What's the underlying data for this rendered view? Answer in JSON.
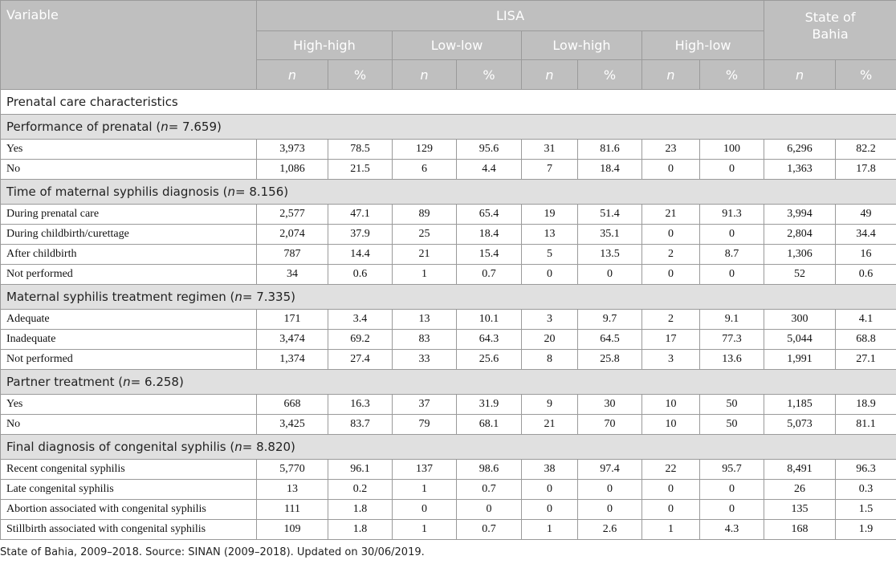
{
  "header": {
    "variable": "Variable",
    "lisa": "LISA",
    "groups": [
      "High-high",
      "Low-low",
      "Low-high",
      "High-low"
    ],
    "state_line1": "State of",
    "state_line2": "Bahia",
    "n": "n",
    "pct": "%"
  },
  "section_title": "Prenatal care characteristics",
  "groups": [
    {
      "title": "Performance of prenatal",
      "n_text": "= 7.659",
      "rows": [
        {
          "label": "Yes",
          "values": [
            "3,973",
            "78.5",
            "129",
            "95.6",
            "31",
            "81.6",
            "23",
            "100",
            "6,296",
            "82.2"
          ]
        },
        {
          "label": "No",
          "values": [
            "1,086",
            "21.5",
            "6",
            "4.4",
            "7",
            "18.4",
            "0",
            "0",
            "1,363",
            "17.8"
          ]
        }
      ]
    },
    {
      "title": "Time of maternal syphilis diagnosis",
      "n_text": "= 8.156",
      "rows": [
        {
          "label": "During prenatal care",
          "values": [
            "2,577",
            "47.1",
            "89",
            "65.4",
            "19",
            "51.4",
            "21",
            "91.3",
            "3,994",
            "49"
          ]
        },
        {
          "label": "During childbirth/curettage",
          "values": [
            "2,074",
            "37.9",
            "25",
            "18.4",
            "13",
            "35.1",
            "0",
            "0",
            "2,804",
            "34.4"
          ]
        },
        {
          "label": "After childbirth",
          "values": [
            "787",
            "14.4",
            "21",
            "15.4",
            "5",
            "13.5",
            "2",
            "8.7",
            "1,306",
            "16"
          ]
        },
        {
          "label": "Not performed",
          "values": [
            "34",
            "0.6",
            "1",
            "0.7",
            "0",
            "0",
            "0",
            "0",
            "52",
            "0.6"
          ]
        }
      ]
    },
    {
      "title": "Maternal syphilis treatment regimen",
      "n_text": "= 7.335",
      "rows": [
        {
          "label": "Adequate",
          "values": [
            "171",
            "3.4",
            "13",
            "10.1",
            "3",
            "9.7",
            "2",
            "9.1",
            "300",
            "4.1"
          ]
        },
        {
          "label": "Inadequate",
          "values": [
            "3,474",
            "69.2",
            "83",
            "64.3",
            "20",
            "64.5",
            "17",
            "77.3",
            "5,044",
            "68.8"
          ]
        },
        {
          "label": "Not performed",
          "values": [
            "1,374",
            "27.4",
            "33",
            "25.6",
            "8",
            "25.8",
            "3",
            "13.6",
            "1,991",
            "27.1"
          ]
        }
      ]
    },
    {
      "title": "Partner treatment",
      "n_text": "= 6.258",
      "rows": [
        {
          "label": "Yes",
          "values": [
            "668",
            "16.3",
            "37",
            "31.9",
            "9",
            "30",
            "10",
            "50",
            "1,185",
            "18.9"
          ]
        },
        {
          "label": "No",
          "values": [
            "3,425",
            "83.7",
            "79",
            "68.1",
            "21",
            "70",
            "10",
            "50",
            "5,073",
            "81.1"
          ]
        }
      ]
    },
    {
      "title": "Final diagnosis of congenital syphilis",
      "n_text": "= 8.820",
      "rows": [
        {
          "label": "Recent congenital syphilis",
          "values": [
            "5,770",
            "96.1",
            "137",
            "98.6",
            "38",
            "97.4",
            "22",
            "95.7",
            "8,491",
            "96.3"
          ]
        },
        {
          "label": "Late congenital syphilis",
          "values": [
            "13",
            "0.2",
            "1",
            "0.7",
            "0",
            "0",
            "0",
            "0",
            "26",
            "0.3"
          ]
        },
        {
          "label": "Abortion associated with congenital syphilis",
          "values": [
            "111",
            "1.8",
            "0",
            "0",
            "0",
            "0",
            "0",
            "0",
            "135",
            "1.5"
          ]
        },
        {
          "label": "Stillbirth associated with congenital syphilis",
          "values": [
            "109",
            "1.8",
            "1",
            "0.7",
            "1",
            "2.6",
            "1",
            "4.3",
            "168",
            "1.9"
          ]
        }
      ]
    }
  ],
  "footnote": "State of Bahia, 2009–2018. Source: SINAN (2009–2018). Updated on 30/06/2019."
}
